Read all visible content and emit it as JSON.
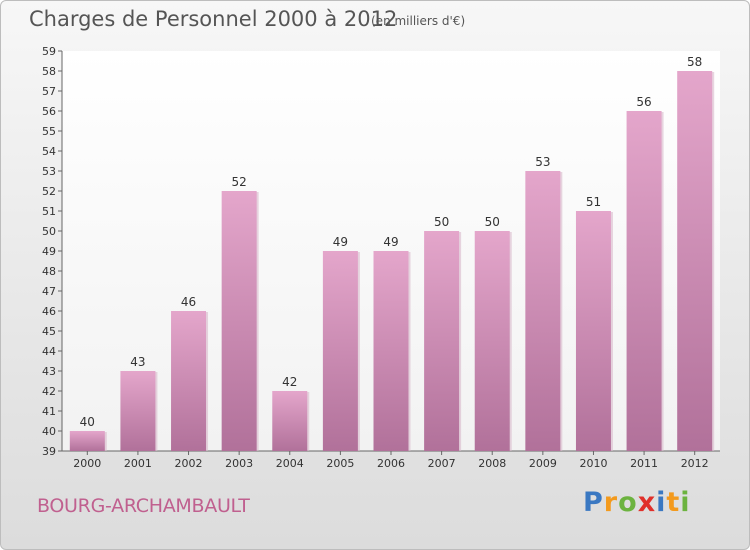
{
  "header": {
    "title": "Charges de Personnel 2000 à 2012",
    "subtitle": "(en milliers d'€)"
  },
  "footer": {
    "city": "BOURG-ARCHAMBAULT",
    "logo_text": "Proxiti"
  },
  "colors": {
    "bar_top": "#e4a6cb",
    "bar_bottom": "#b1719a",
    "city_text": "#c0608f",
    "axis_text": "#333333"
  },
  "chart_data": {
    "type": "bar",
    "categories": [
      "2000",
      "2001",
      "2002",
      "2003",
      "2004",
      "2005",
      "2006",
      "2007",
      "2008",
      "2009",
      "2010",
      "2011",
      "2012"
    ],
    "values": [
      40,
      43,
      46,
      52,
      42,
      49,
      49,
      50,
      50,
      53,
      51,
      56,
      58
    ],
    "ylim": [
      39,
      59
    ],
    "yticks": [
      39,
      40,
      41,
      42,
      43,
      44,
      45,
      46,
      47,
      48,
      49,
      50,
      51,
      52,
      53,
      54,
      55,
      56,
      57,
      58,
      59
    ],
    "grid": false,
    "data_labels": true
  }
}
